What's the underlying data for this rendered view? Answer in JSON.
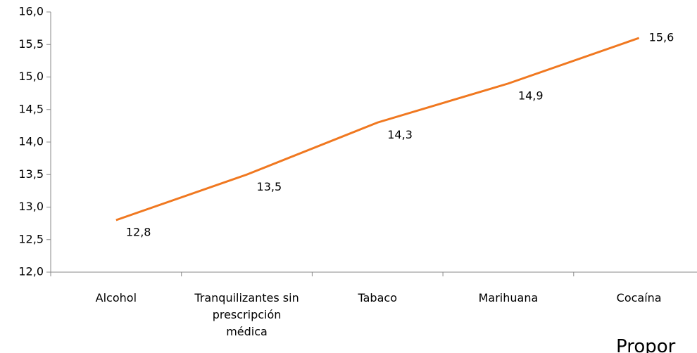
{
  "chart_data": {
    "type": "line",
    "categories": [
      "Alcohol",
      "Tranquilizantes sin prescripción médica",
      "Tabaco",
      "Marihuana",
      "Cocaína"
    ],
    "series": [
      {
        "color": "#f07820",
        "values": [
          12.8,
          13.5,
          14.3,
          14.9,
          15.6
        ],
        "value_labels": [
          "12,8",
          "13,5",
          "14,3",
          "14,9",
          "15,6"
        ]
      }
    ],
    "ylim": [
      12,
      16
    ],
    "yticks": [
      {
        "value": 12,
        "label": "12,0"
      },
      {
        "value": 12.5,
        "label": "12,5"
      },
      {
        "value": 13,
        "label": "13,0"
      },
      {
        "value": 13.5,
        "label": "13,5"
      },
      {
        "value": 14,
        "label": "14,0"
      },
      {
        "value": 14.5,
        "label": "14,5"
      },
      {
        "value": 15,
        "label": "15,0"
      },
      {
        "value": 15.5,
        "label": "15,5"
      },
      {
        "value": 16,
        "label": "16,0"
      }
    ],
    "annotation": "Propor"
  }
}
